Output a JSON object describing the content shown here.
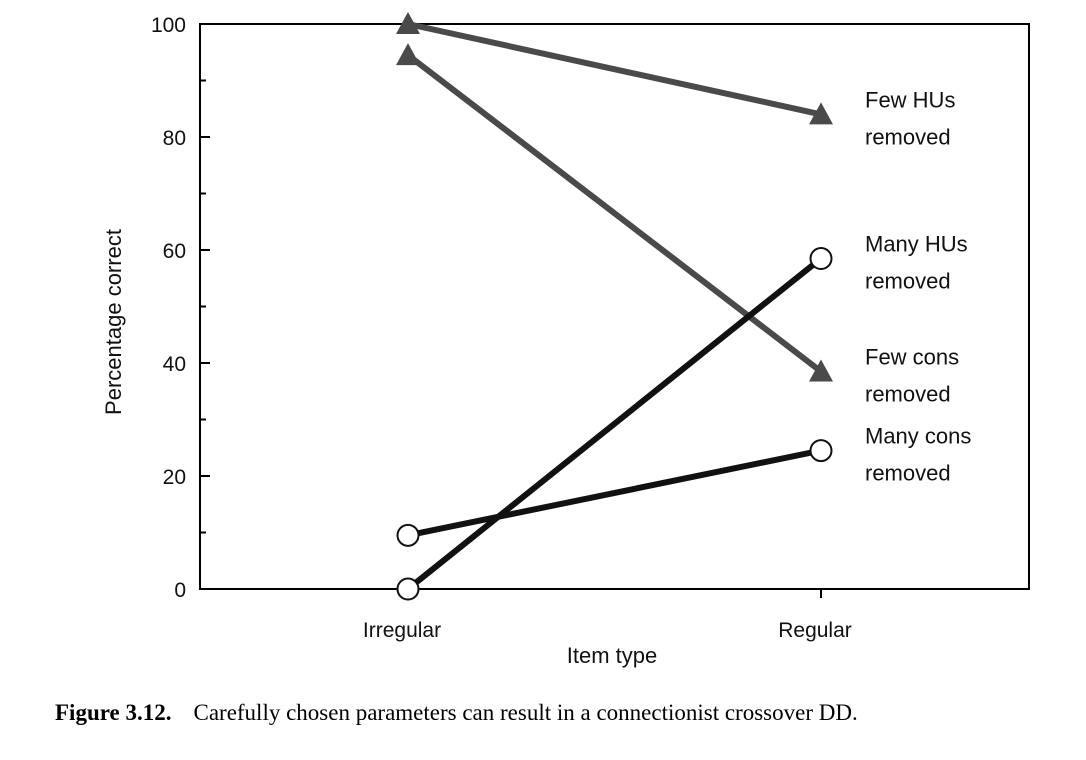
{
  "chart_data": {
    "type": "line",
    "categories": [
      "Irregular",
      "Regular"
    ],
    "xlabel": "Item type",
    "ylabel": "Percentage correct",
    "ylim": [
      0,
      100
    ],
    "yticks": [
      0,
      20,
      40,
      60,
      80,
      100
    ],
    "grid": false,
    "series": [
      {
        "label_lines": [
          "Few HUs",
          "removed"
        ],
        "values": [
          100,
          84
        ],
        "marker": "triangle",
        "color": "#4a4a4a"
      },
      {
        "label_lines": [
          "Few cons",
          "removed"
        ],
        "values": [
          94.5,
          38.5
        ],
        "marker": "triangle",
        "color": "#4a4a4a"
      },
      {
        "label_lines": [
          "Many HUs",
          "removed"
        ],
        "values": [
          0,
          58.5
        ],
        "marker": "circle",
        "color": "#111111"
      },
      {
        "label_lines": [
          "Many cons",
          "removed"
        ],
        "values": [
          9.5,
          24.5
        ],
        "marker": "circle",
        "color": "#111111"
      }
    ]
  },
  "caption": {
    "number": "Figure 3.12.",
    "text": "Carefully chosen parameters can result in a connectionist crossover DD."
  }
}
